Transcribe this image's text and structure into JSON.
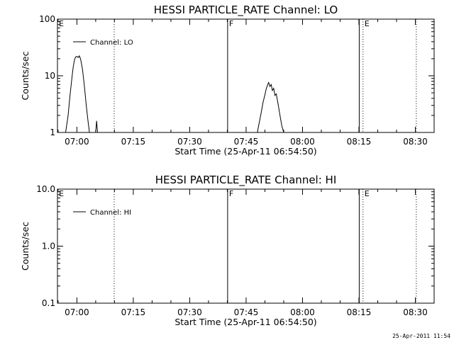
{
  "footer": {
    "timestamp": "25-Apr-2011 11:54"
  },
  "chart_data": [
    {
      "type": "line",
      "title": "HESSI PARTICLE_RATE Channel: LO",
      "xlabel": "Start Time (25-Apr-11 06:54:50)",
      "ylabel": "Counts/sec",
      "yscale": "log",
      "ylim": [
        1,
        100
      ],
      "xlim": [
        "06:54:50",
        "08:35:00"
      ],
      "xticks": [
        "07:00",
        "07:15",
        "07:30",
        "07:45",
        "08:00",
        "08:15",
        "08:30"
      ],
      "yticks": [
        "1",
        "10",
        "100"
      ],
      "legend": {
        "position": "top-left",
        "entries": [
          "Channel: LO"
        ]
      },
      "series": [
        {
          "name": "Channel: LO",
          "segments": [
            [
              [
                "06:57:00",
                1.0
              ],
              [
                "06:57:40",
                2.0
              ],
              [
                "06:58:10",
                4.5
              ],
              [
                "06:58:40",
                9.0
              ],
              [
                "06:59:00",
                14.0
              ],
              [
                "06:59:20",
                19.0
              ],
              [
                "06:59:40",
                21.5
              ],
              [
                "07:00:00",
                22.0
              ],
              [
                "07:00:20",
                21.0
              ],
              [
                "07:00:40",
                22.5
              ],
              [
                "07:01:00",
                19.5
              ],
              [
                "07:01:30",
                13.0
              ],
              [
                "07:02:00",
                6.5
              ],
              [
                "07:02:30",
                3.0
              ],
              [
                "07:03:00",
                1.5
              ],
              [
                "07:03:20",
                1.0
              ]
            ],
            [
              [
                "07:05:00",
                1.0
              ],
              [
                "07:05:15",
                1.6
              ],
              [
                "07:05:30",
                1.0
              ]
            ],
            [
              [
                "07:48:00",
                1.0
              ],
              [
                "07:48:30",
                1.5
              ],
              [
                "07:49:00",
                2.2
              ],
              [
                "07:49:30",
                3.4
              ],
              [
                "07:50:00",
                4.6
              ],
              [
                "07:50:20",
                5.8
              ],
              [
                "07:50:40",
                6.8
              ],
              [
                "07:51:00",
                7.6
              ],
              [
                "07:51:20",
                6.5
              ],
              [
                "07:51:40",
                7.0
              ],
              [
                "07:52:00",
                5.5
              ],
              [
                "07:52:20",
                6.0
              ],
              [
                "07:52:40",
                4.5
              ],
              [
                "07:53:00",
                4.8
              ],
              [
                "07:53:30",
                3.2
              ],
              [
                "07:54:00",
                2.0
              ],
              [
                "07:54:30",
                1.3
              ],
              [
                "07:55:00",
                1.0
              ]
            ]
          ]
        }
      ],
      "event_lines": [
        {
          "time": "07:09:55",
          "style": "dotted",
          "label": ""
        },
        {
          "time": "07:40:05",
          "style": "solid",
          "label": "F"
        },
        {
          "time": "08:15:05",
          "style": "solid",
          "label": ""
        },
        {
          "time": "08:16:05",
          "style": "dotted",
          "label": "E"
        },
        {
          "time": "08:30:15",
          "style": "dotted",
          "label": ""
        }
      ],
      "edge_label": "E"
    },
    {
      "type": "line",
      "title": "HESSI PARTICLE_RATE Channel: HI",
      "xlabel": "Start Time (25-Apr-11 06:54:50)",
      "ylabel": "Counts/sec",
      "yscale": "log",
      "ylim": [
        0.1,
        10
      ],
      "xlim": [
        "06:54:50",
        "08:35:00"
      ],
      "xticks": [
        "07:00",
        "07:15",
        "07:30",
        "07:45",
        "08:00",
        "08:15",
        "08:30"
      ],
      "yticks": [
        "0.1",
        "1.0",
        "10.0"
      ],
      "legend": {
        "position": "top-left",
        "entries": [
          "Channel: HI"
        ]
      },
      "series": [
        {
          "name": "Channel: HI",
          "segments": []
        }
      ],
      "event_lines": [
        {
          "time": "07:09:55",
          "style": "dotted",
          "label": ""
        },
        {
          "time": "07:40:05",
          "style": "solid",
          "label": "F"
        },
        {
          "time": "08:15:05",
          "style": "solid",
          "label": ""
        },
        {
          "time": "08:16:05",
          "style": "dotted",
          "label": "E"
        },
        {
          "time": "08:30:15",
          "style": "dotted",
          "label": ""
        }
      ],
      "edge_label": "E"
    }
  ]
}
